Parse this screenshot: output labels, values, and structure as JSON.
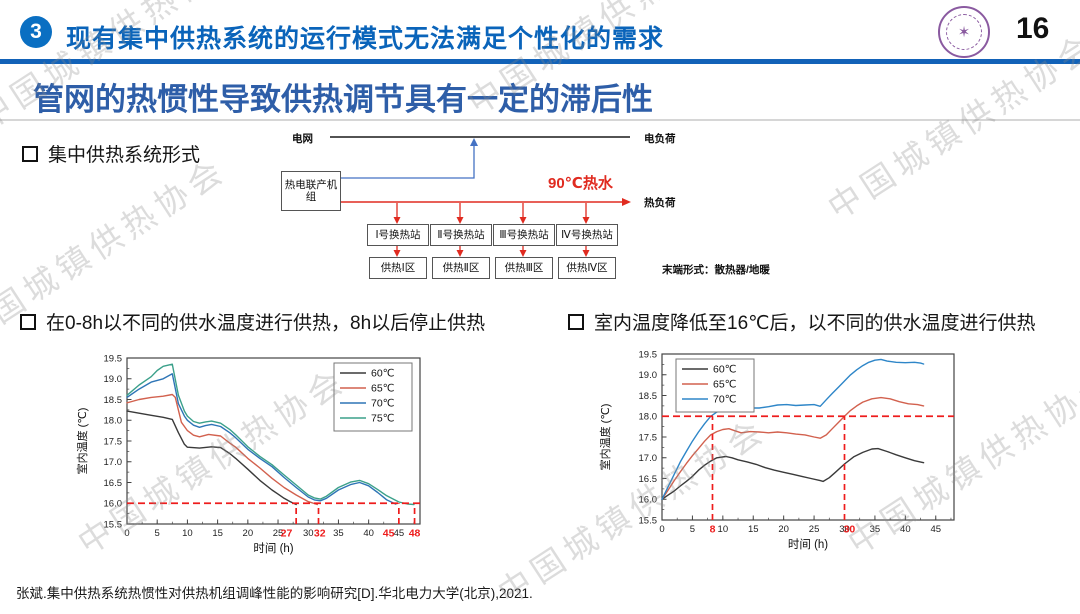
{
  "header": {
    "badge": "3",
    "title": "现有集中供热系统的运行模式无法满足个性化的需求",
    "page_number": "16",
    "logo_icon": "university-seal-icon",
    "accent_color": "#1262b8"
  },
  "subtitle": "管网的热惯性导致供热调节具有一定的滞后性",
  "watermark": {
    "text": "中国城镇供热协会"
  },
  "sections": {
    "system_form_label": "集中供热系统形式",
    "left_chart_caption": "在0-8h以不同的供水温度进行供热，8h以后停止供热",
    "right_chart_caption": "室内温度降低至16℃后，以不同的供水温度进行供热"
  },
  "diagram": {
    "grid_label": "电网",
    "electric_load_label": "电负荷",
    "chp_unit_label": "热电联产机组",
    "hot_water_label": "90℃热水",
    "heat_load_label": "热负荷",
    "substations": [
      "Ⅰ号换热站",
      "Ⅱ号换热站",
      "Ⅲ号换热站",
      "Ⅳ号换热站"
    ],
    "zones": [
      "供热Ⅰ区",
      "供热Ⅱ区",
      "供热Ⅲ区",
      "供热Ⅳ区"
    ],
    "terminal_label": "末端形式：散热器/地暖"
  },
  "citation": "张斌.集中供热系统热惯性对供热机组调峰性能的影响研究[D].华北电力大学(北京),2021.",
  "chart_data": [
    {
      "type": "line",
      "title": "",
      "xlabel": "时间 (h)",
      "ylabel": "室内温度 (℃)",
      "xlim": [
        0,
        48.5
      ],
      "ylim": [
        15.5,
        19.5
      ],
      "xticks": [
        0,
        5,
        10,
        15,
        20,
        25,
        30,
        35,
        40,
        45
      ],
      "yticks": [
        15.5,
        16.0,
        16.5,
        17.0,
        17.5,
        18.0,
        18.5,
        19.0,
        19.5
      ],
      "x_minor_step": 2.5,
      "y_minor_step": 0.25,
      "legend_position": "top-right",
      "grid": false,
      "series": [
        {
          "name": "60℃",
          "color": "#3a3a3a",
          "x": [
            0,
            2,
            4,
            6,
            7.5,
            8.5,
            9.5,
            10,
            12,
            14,
            15.5,
            17,
            18,
            20,
            22,
            24,
            25,
            26,
            27,
            28
          ],
          "y": [
            18.22,
            18.17,
            18.12,
            18.07,
            18.02,
            17.7,
            17.42,
            17.35,
            17.33,
            17.36,
            17.34,
            17.2,
            17.08,
            16.82,
            16.55,
            16.32,
            16.22,
            16.12,
            16.04,
            15.97
          ]
        },
        {
          "name": "65℃",
          "color": "#d2614e",
          "x": [
            0,
            2,
            4,
            6,
            7.5,
            8,
            9,
            10,
            11,
            12,
            13.5,
            15.5,
            17,
            18,
            20,
            22,
            24,
            26,
            28,
            30,
            31.5
          ],
          "y": [
            18.42,
            18.5,
            18.55,
            18.58,
            18.62,
            18.55,
            17.95,
            17.75,
            17.64,
            17.6,
            17.66,
            17.62,
            17.45,
            17.35,
            17.08,
            16.85,
            16.6,
            16.38,
            16.2,
            16.04,
            15.97
          ]
        },
        {
          "name": "70℃",
          "color": "#2e75b6",
          "x": [
            0,
            2,
            4,
            6,
            7.5,
            8.5,
            9.5,
            10,
            11,
            12,
            13,
            14,
            15.5,
            17,
            18,
            20,
            22,
            24,
            26,
            28,
            30,
            31,
            32,
            33,
            35,
            37,
            38.5,
            40,
            41.5,
            43,
            44.5
          ],
          "y": [
            18.55,
            18.75,
            18.92,
            19.0,
            19.12,
            18.4,
            18.1,
            18.0,
            17.88,
            17.83,
            17.87,
            17.9,
            17.85,
            17.7,
            17.58,
            17.3,
            17.08,
            16.88,
            16.62,
            16.38,
            16.15,
            16.08,
            16.06,
            16.12,
            16.32,
            16.45,
            16.5,
            16.42,
            16.26,
            16.08,
            15.98
          ]
        },
        {
          "name": "75℃",
          "color": "#3ba08a",
          "x": [
            0,
            2,
            4,
            5,
            6,
            7.5,
            8.5,
            9.5,
            10,
            11,
            12,
            13,
            14,
            15.5,
            17,
            18,
            20,
            22,
            24,
            26,
            28,
            30,
            31,
            32,
            33,
            35,
            37,
            38.5,
            40,
            41.5,
            43,
            45,
            46.5,
            47.5
          ],
          "y": [
            18.6,
            18.85,
            19.05,
            19.2,
            19.3,
            19.35,
            18.6,
            18.22,
            18.1,
            17.97,
            17.93,
            17.96,
            17.98,
            17.93,
            17.78,
            17.65,
            17.36,
            17.13,
            16.93,
            16.68,
            16.44,
            16.2,
            16.13,
            16.1,
            16.17,
            16.38,
            16.51,
            16.55,
            16.47,
            16.33,
            16.18,
            16.03,
            15.98,
            15.97
          ]
        }
      ],
      "annotations": {
        "color": "#ee1c1c",
        "hline": 16.0,
        "vlines": [
          {
            "x": 28,
            "label": "27",
            "label_x": 26.4
          },
          {
            "x": 31.7,
            "label": "32",
            "label_x": 31.9
          },
          {
            "x": 45,
            "label": "45",
            "label_x": 43.3
          },
          {
            "x": 47.6,
            "label": "48",
            "label_x": 47.6
          }
        ]
      }
    },
    {
      "type": "line",
      "title": "",
      "xlabel": "时间 (h)",
      "ylabel": "室内温度 (℃)",
      "xlim": [
        0,
        48
      ],
      "ylim": [
        15.5,
        19.5
      ],
      "xticks": [
        0,
        5,
        10,
        15,
        20,
        25,
        30,
        35,
        40,
        45
      ],
      "yticks": [
        15.5,
        16.0,
        16.5,
        17.0,
        17.5,
        18.0,
        18.5,
        19.0,
        19.5
      ],
      "x_minor_step": 2.5,
      "y_minor_step": 0.25,
      "legend_position": "top-left",
      "grid": false,
      "series": [
        {
          "name": "60℃",
          "color": "#3a3a3a",
          "x": [
            0,
            1,
            2,
            3,
            4,
            5,
            6,
            7,
            8,
            9,
            10.5,
            11.5,
            12.5,
            14,
            15.5,
            17,
            18.5,
            20,
            21.5,
            23,
            24.5,
            26,
            26.5,
            27.5,
            28.5,
            30,
            31.5,
            33,
            34.5,
            35.5,
            37,
            38.5,
            40,
            41.5,
            43
          ],
          "y": [
            16.0,
            16.1,
            16.2,
            16.32,
            16.43,
            16.55,
            16.7,
            16.82,
            16.92,
            17.0,
            17.03,
            17.0,
            16.95,
            16.9,
            16.84,
            16.76,
            16.7,
            16.65,
            16.6,
            16.55,
            16.5,
            16.45,
            16.43,
            16.52,
            16.65,
            16.85,
            17.02,
            17.13,
            17.21,
            17.22,
            17.15,
            17.07,
            17.0,
            16.93,
            16.88
          ]
        },
        {
          "name": "65℃",
          "color": "#d2614e",
          "x": [
            0,
            1,
            2,
            3,
            4,
            5,
            6,
            7,
            8,
            9,
            10,
            11,
            12,
            13,
            14.5,
            16,
            17.5,
            19,
            20.5,
            22,
            23.5,
            25,
            26,
            27,
            28,
            29,
            30,
            31,
            32,
            33,
            34.5,
            36,
            37.5,
            39,
            40.5,
            42,
            43
          ],
          "y": [
            16.0,
            16.22,
            16.45,
            16.66,
            16.86,
            17.05,
            17.22,
            17.4,
            17.55,
            17.63,
            17.68,
            17.7,
            17.65,
            17.6,
            17.63,
            17.62,
            17.6,
            17.62,
            17.6,
            17.57,
            17.55,
            17.5,
            17.47,
            17.55,
            17.7,
            17.85,
            18.0,
            18.14,
            18.25,
            18.34,
            18.42,
            18.45,
            18.42,
            18.35,
            18.3,
            18.28,
            18.25
          ]
        },
        {
          "name": "70℃",
          "color": "#2e86c8",
          "x": [
            0,
            1,
            2,
            3,
            4,
            5,
            6,
            7,
            8,
            9,
            10,
            11,
            12,
            13,
            13.5,
            14.5,
            16,
            17.5,
            19,
            20.5,
            22,
            23.5,
            25,
            26,
            27,
            28,
            29,
            30,
            31,
            32,
            33,
            34,
            35,
            36,
            37,
            38.5,
            40,
            41.5,
            42.5,
            43
          ],
          "y": [
            16.0,
            16.3,
            16.6,
            16.9,
            17.15,
            17.4,
            17.62,
            17.82,
            18.0,
            18.1,
            18.15,
            18.2,
            18.2,
            18.17,
            18.23,
            18.2,
            18.2,
            18.23,
            18.27,
            18.28,
            18.26,
            18.27,
            18.28,
            18.24,
            18.4,
            18.55,
            18.7,
            18.85,
            19.0,
            19.12,
            19.22,
            19.3,
            19.35,
            19.37,
            19.33,
            19.3,
            19.29,
            19.3,
            19.28,
            19.26
          ]
        }
      ],
      "annotations": {
        "color": "#ee1c1c",
        "hline": 18.0,
        "vlines": [
          {
            "x": 8.3,
            "label": "8",
            "label_x": 8.3
          },
          {
            "x": 30,
            "label": "30",
            "label_x": 30.8
          }
        ]
      }
    }
  ]
}
